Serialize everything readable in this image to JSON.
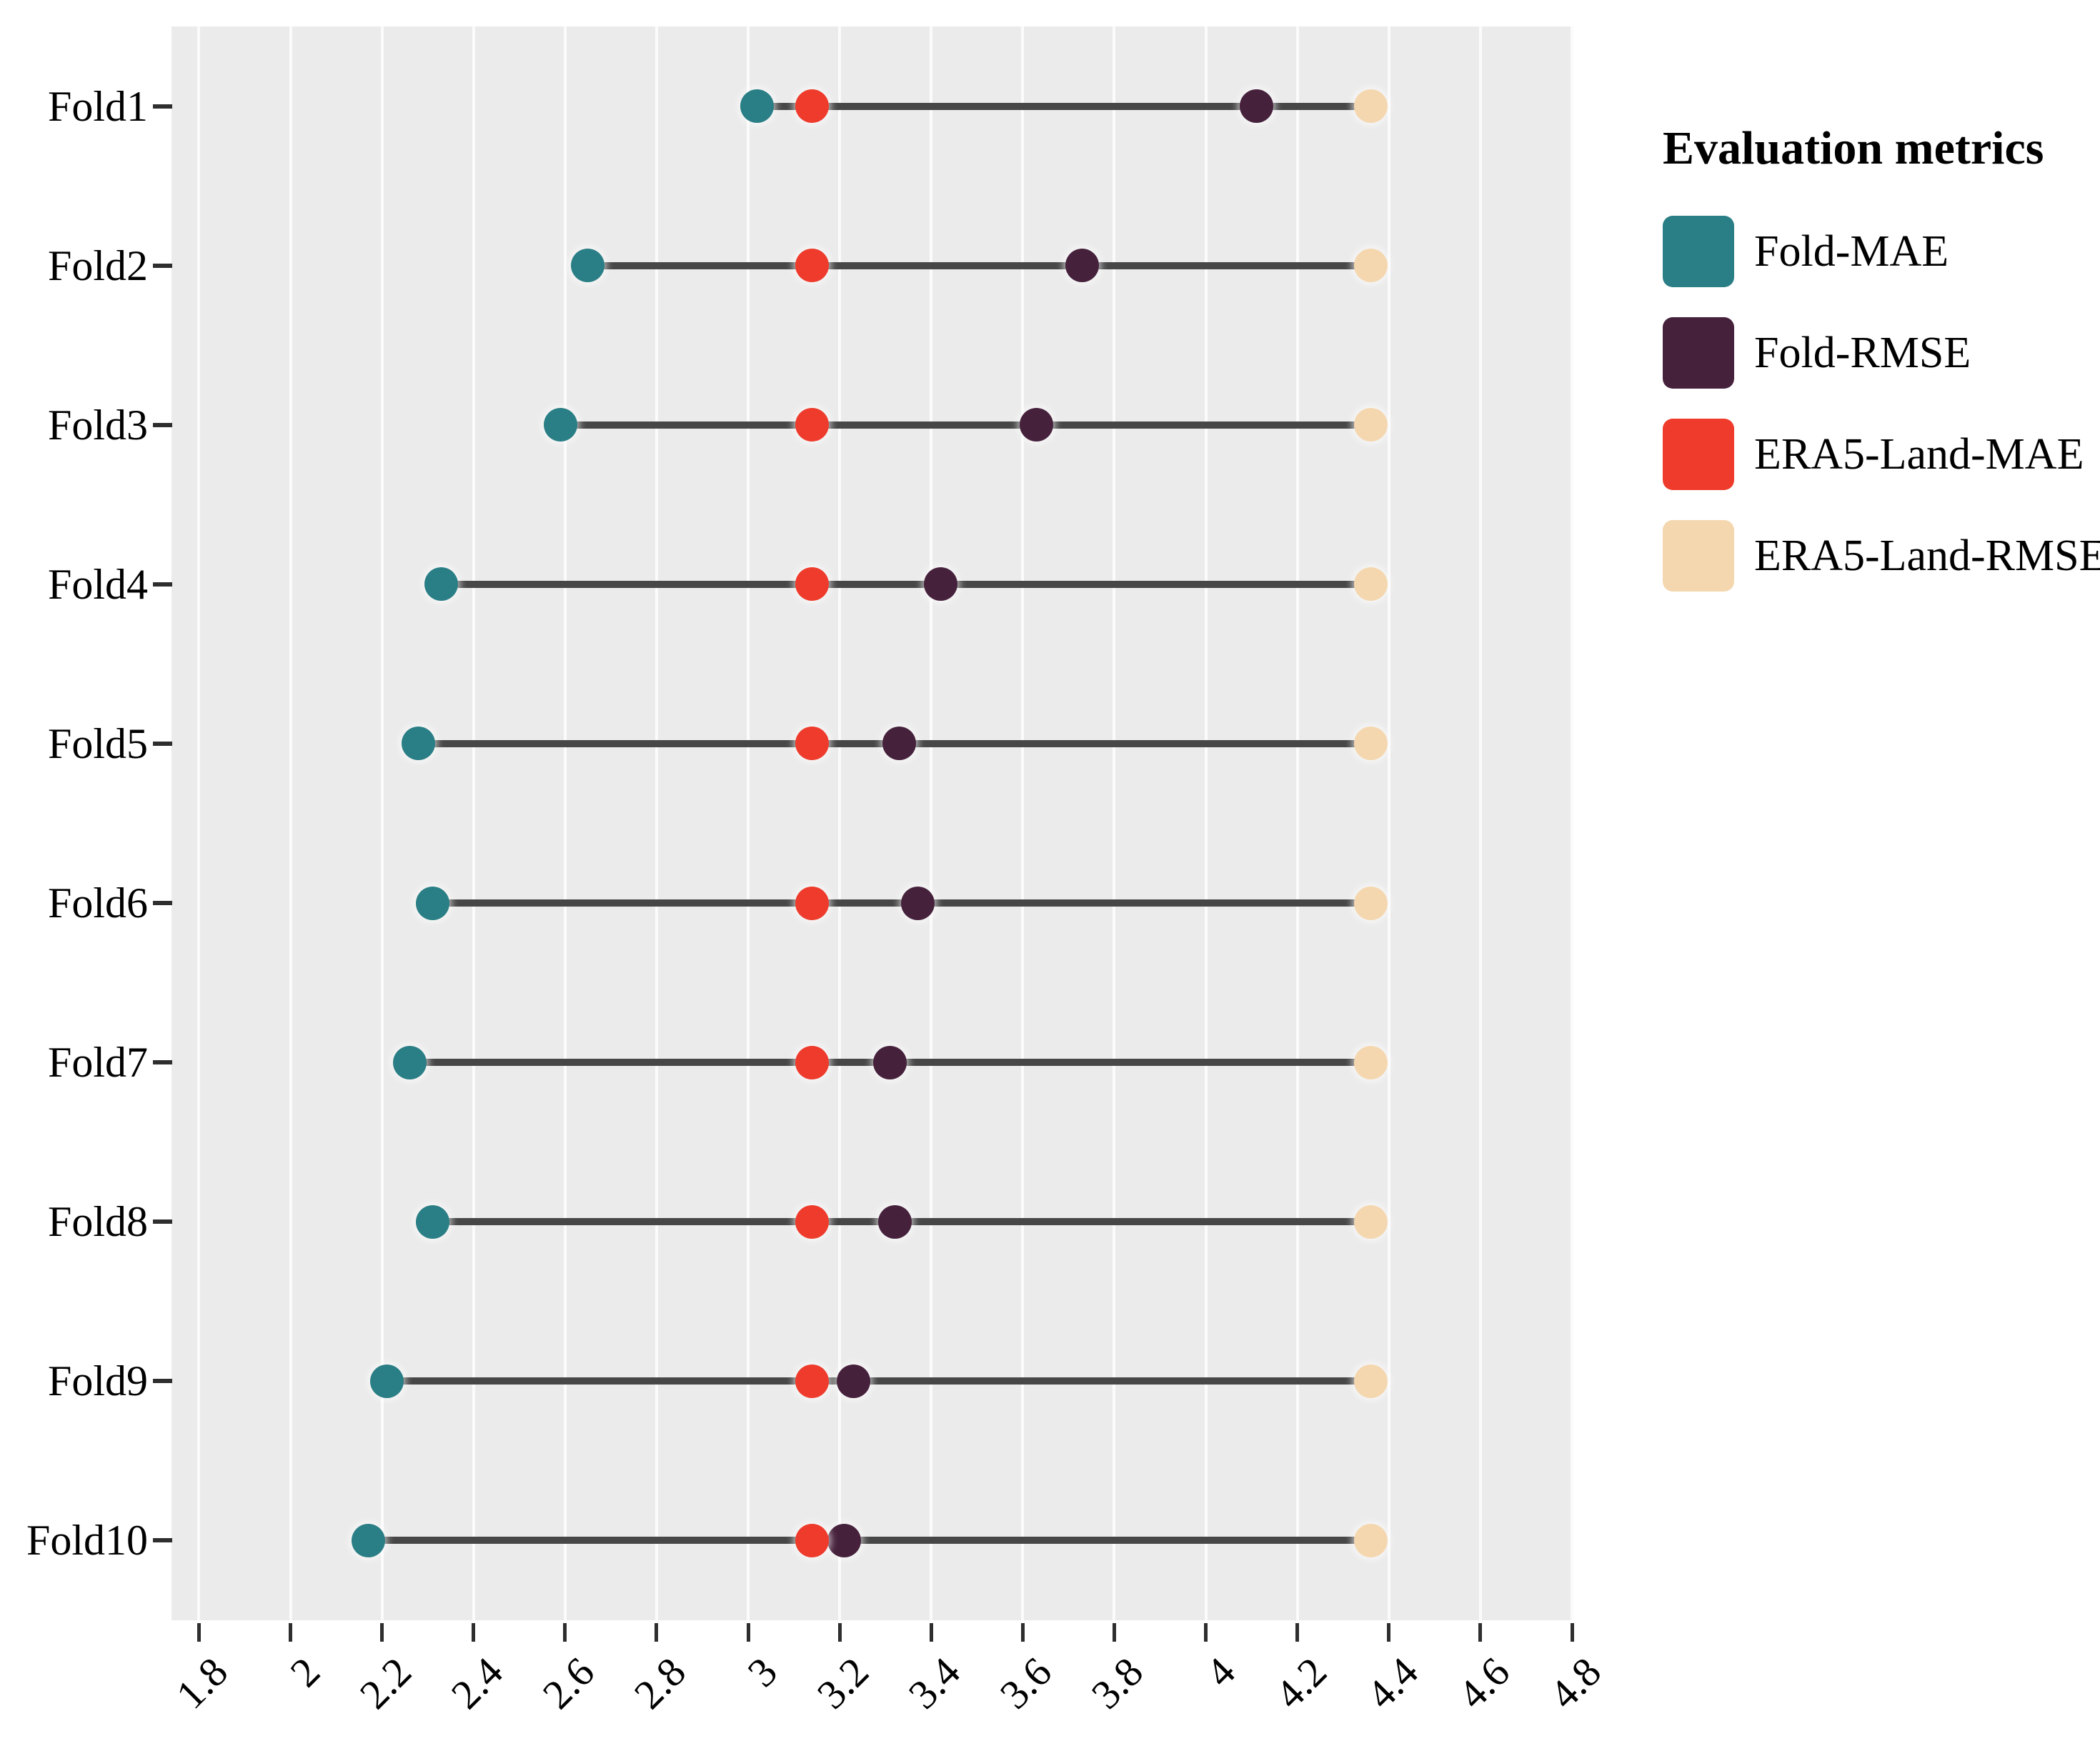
{
  "figure": {
    "background": "#ffffff",
    "panel_background": "#ebebeb",
    "gridline_color": "#fbfbfb",
    "segment_color": "#474747",
    "axis_tick_color": "#2e2e2e",
    "text_color": "#000000"
  },
  "legend": {
    "title": "Evaluation metrics",
    "items": [
      {
        "label": "Fold-MAE",
        "color": "#2a7e85"
      },
      {
        "label": "Fold-RMSE",
        "color": "#46213c"
      },
      {
        "label": "ERA5-Land-MAE",
        "color": "#ee3b2b"
      },
      {
        "label": "ERA5-Land-RMSE",
        "color": "#f4d7af"
      }
    ]
  },
  "chart_data": {
    "type": "scatter",
    "subtype": "horizontal-dumbbell-dot-plot",
    "title": "",
    "xlabel": "",
    "ylabel": "",
    "legend_title": "Evaluation metrics",
    "legend_position": "right",
    "grid": "major-x-only",
    "categories": [
      "Fold1",
      "Fold2",
      "Fold3",
      "Fold4",
      "Fold5",
      "Fold6",
      "Fold7",
      "Fold8",
      "Fold9",
      "Fold10"
    ],
    "series": [
      {
        "name": "Fold-MAE",
        "color": "#2a7e85",
        "values": [
          3.02,
          2.65,
          2.59,
          2.33,
          2.28,
          2.31,
          2.26,
          2.31,
          2.21,
          2.17
        ]
      },
      {
        "name": "Fold-RMSE",
        "color": "#46213c",
        "values": [
          4.11,
          3.73,
          3.63,
          3.42,
          3.33,
          3.37,
          3.31,
          3.32,
          3.23,
          3.21
        ]
      },
      {
        "name": "ERA5-Land-MAE",
        "color": "#ee3b2b",
        "values": [
          3.14,
          3.14,
          3.14,
          3.14,
          3.14,
          3.14,
          3.14,
          3.14,
          3.14,
          3.14
        ]
      },
      {
        "name": "ERA5-Land-RMSE",
        "color": "#f4d7af",
        "values": [
          4.36,
          4.36,
          4.36,
          4.36,
          4.36,
          4.36,
          4.36,
          4.36,
          4.36,
          4.36
        ]
      }
    ],
    "xlim": [
      1.74,
      4.8
    ],
    "x_ticks": [
      {
        "value": 1.8,
        "label": "1.8"
      },
      {
        "value": 2.0,
        "label": "2"
      },
      {
        "value": 2.2,
        "label": "2.2"
      },
      {
        "value": 2.4,
        "label": "2.4"
      },
      {
        "value": 2.6,
        "label": "2.6"
      },
      {
        "value": 2.8,
        "label": "2.8"
      },
      {
        "value": 3.0,
        "label": "3"
      },
      {
        "value": 3.2,
        "label": "3.2"
      },
      {
        "value": 3.4,
        "label": "3.4"
      },
      {
        "value": 3.6,
        "label": "3.6"
      },
      {
        "value": 3.8,
        "label": "3.8"
      },
      {
        "value": 4.0,
        "label": "4"
      },
      {
        "value": 4.2,
        "label": "4.2"
      },
      {
        "value": 4.4,
        "label": "4.4"
      },
      {
        "value": 4.6,
        "label": "4.6"
      },
      {
        "value": 4.8,
        "label": "4.8"
      }
    ]
  }
}
